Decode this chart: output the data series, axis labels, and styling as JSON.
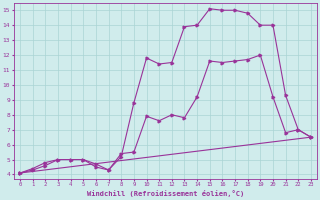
{
  "line1_x": [
    0,
    1,
    2,
    3,
    4,
    5,
    6,
    7,
    8,
    9,
    10,
    11,
    12,
    13,
    14,
    15,
    16,
    17,
    18,
    19,
    20,
    21,
    22,
    23
  ],
  "line1_y": [
    4.1,
    4.4,
    4.8,
    5.0,
    5.0,
    5.0,
    4.5,
    4.3,
    5.2,
    8.8,
    11.8,
    11.4,
    11.5,
    13.9,
    14.0,
    15.1,
    15.0,
    15.0,
    14.8,
    14.0,
    14.0,
    9.3,
    7.0,
    6.5
  ],
  "line2_x": [
    0,
    1,
    2,
    3,
    4,
    5,
    6,
    7,
    8,
    9,
    10,
    11,
    12,
    13,
    14,
    15,
    16,
    17,
    18,
    19,
    20,
    21,
    22,
    23
  ],
  "line2_y": [
    4.1,
    4.3,
    4.6,
    5.0,
    5.0,
    5.0,
    4.7,
    4.3,
    5.4,
    5.5,
    7.9,
    7.6,
    8.0,
    7.8,
    9.2,
    11.6,
    11.5,
    11.6,
    11.7,
    12.0,
    9.2,
    6.8,
    7.0,
    6.5
  ],
  "line3_x": [
    0,
    23
  ],
  "line3_y": [
    4.1,
    6.5
  ],
  "color": "#993399",
  "bg_color": "#d0ecec",
  "grid_color": "#aad4d4",
  "xlabel": "Windchill (Refroidissement éolien,°C)",
  "xlim": [
    -0.5,
    23.5
  ],
  "ylim": [
    3.7,
    15.5
  ],
  "yticks": [
    4,
    5,
    6,
    7,
    8,
    9,
    10,
    11,
    12,
    13,
    14,
    15
  ],
  "xticks": [
    0,
    1,
    2,
    3,
    4,
    5,
    6,
    7,
    8,
    9,
    10,
    11,
    12,
    13,
    14,
    15,
    16,
    17,
    18,
    19,
    20,
    21,
    22,
    23
  ]
}
